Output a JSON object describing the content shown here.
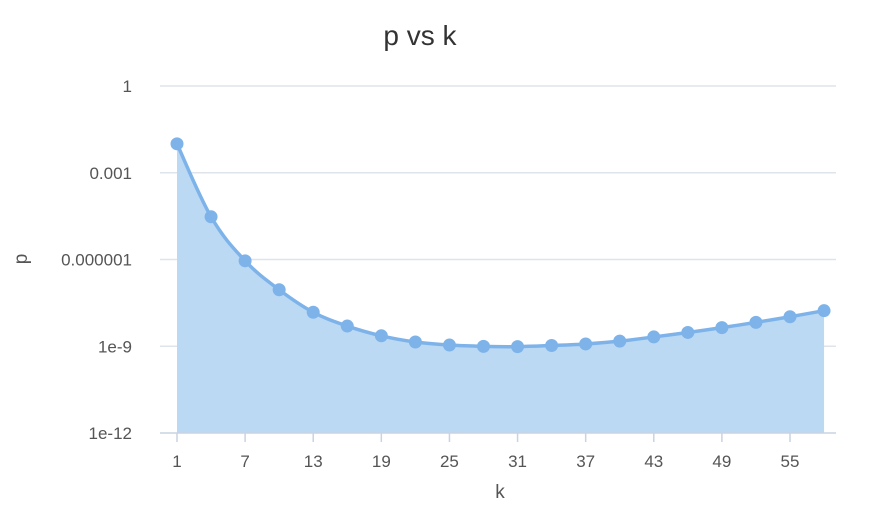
{
  "chart_data": {
    "type": "area",
    "title": "p vs k",
    "xlabel": "k",
    "ylabel": "p",
    "x_tick_labels": [
      "1",
      "7",
      "13",
      "19",
      "25",
      "31",
      "37",
      "43",
      "49",
      "55"
    ],
    "y_tick_labels": [
      "1",
      "0.001",
      "0.000001",
      "1e-9",
      "1e-12"
    ],
    "y_scale": "log",
    "ylim": [
      1e-12,
      1
    ],
    "xlim": [
      1,
      57
    ],
    "grid": true,
    "legend": "none",
    "colors": {
      "line": "#7eb3ea",
      "fill": "#bcd9f4",
      "marker": "#7eb3ea"
    },
    "series": [
      {
        "x": [
          1,
          4,
          7,
          10,
          13,
          16,
          19,
          22,
          25,
          28,
          31,
          34,
          37,
          40,
          43,
          46,
          49,
          52,
          55,
          58
        ],
        "values": [
          0.01,
          3e-05,
          9e-07,
          9e-08,
          1.5e-08,
          5e-09,
          2.3e-09,
          1.4e-09,
          1.1e-09,
          9.9e-10,
          9.7e-10,
          1.06e-09,
          1.2e-09,
          1.5e-09,
          2.1e-09,
          3e-09,
          4.4e-09,
          6.7e-09,
          1.05e-08,
          1.7e-08
        ]
      }
    ]
  }
}
